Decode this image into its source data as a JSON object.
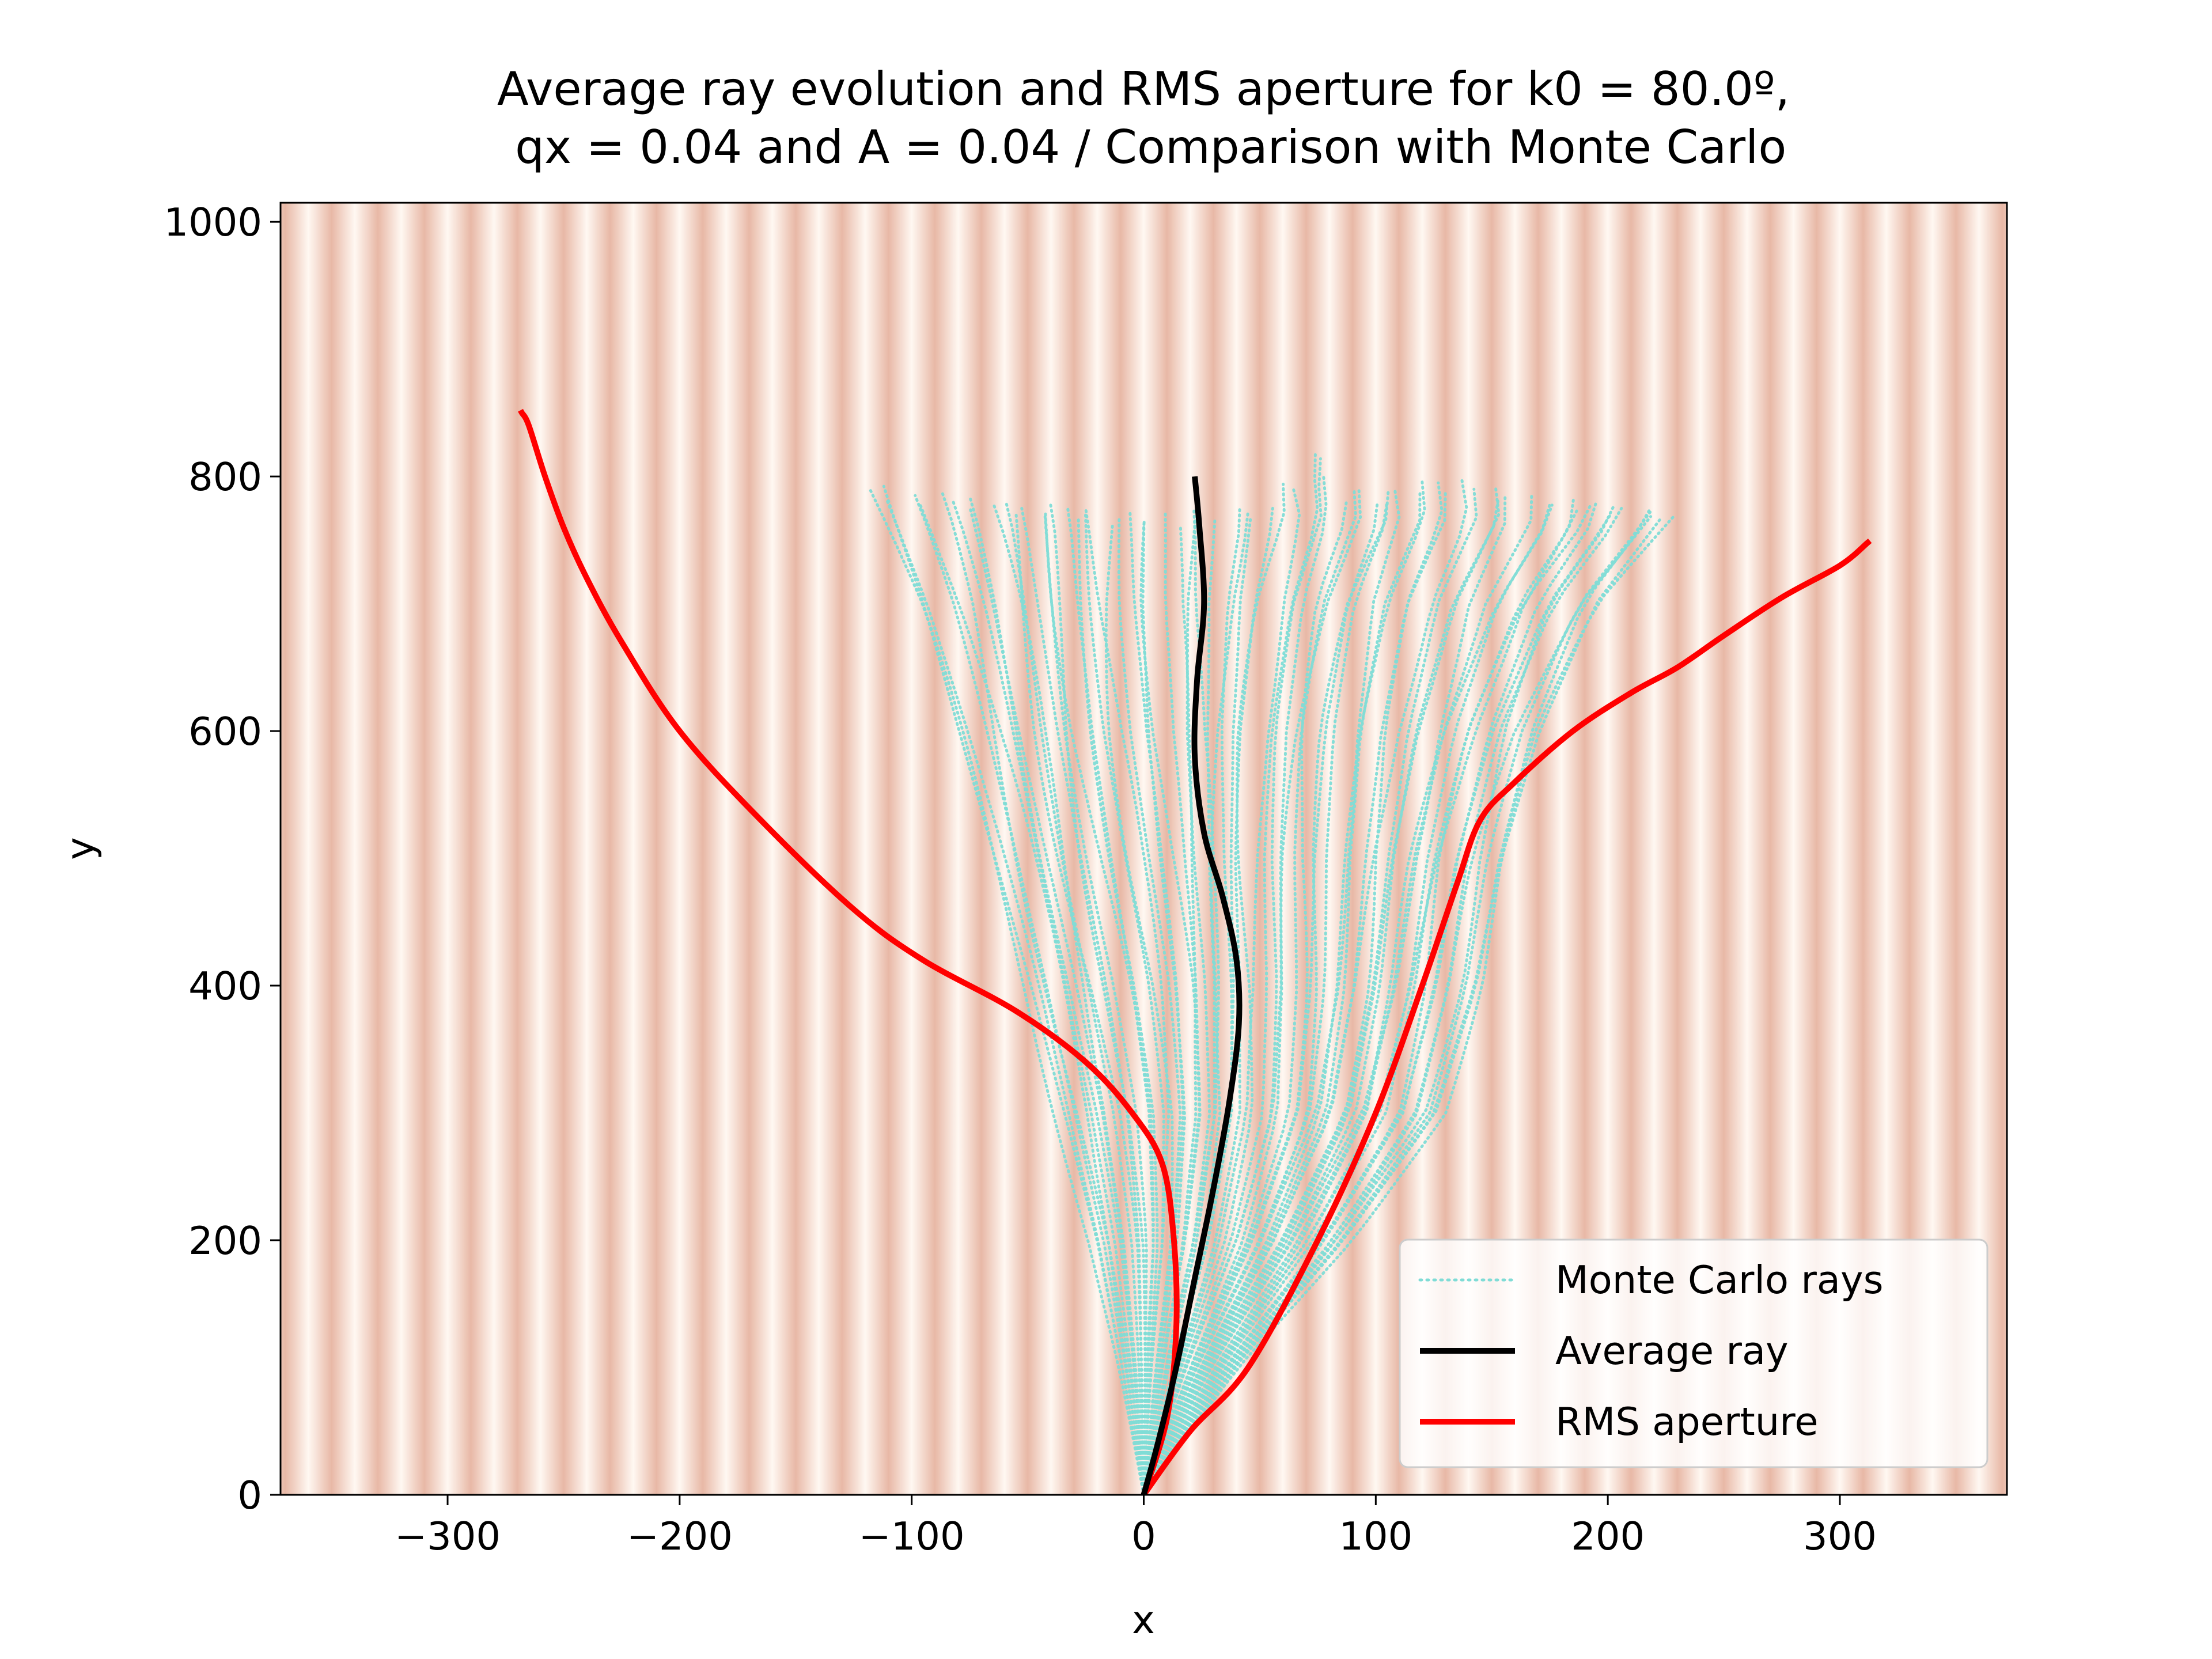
{
  "chart_data": {
    "type": "line",
    "title": "Average ray evolution and RMS aperture for k0 = 80.0º,\n qx = 0.04 and A = 0.04 / Comparison with Monte Carlo",
    "title_lines": [
      "Average ray evolution and RMS aperture for k0 = 80.0º,",
      " qx = 0.04 and A = 0.04 / Comparison with Monte Carlo"
    ],
    "xlabel": "x",
    "ylabel": "y",
    "xlim": [
      -372,
      372
    ],
    "ylim": [
      0,
      1015
    ],
    "xticks": [
      -300,
      -200,
      -100,
      0,
      100,
      200,
      300
    ],
    "yticks": [
      0,
      200,
      400,
      600,
      800,
      1000
    ],
    "xtick_labels": [
      "−300",
      "−200",
      "−100",
      "0",
      "100",
      "200",
      "300"
    ],
    "ytick_labels": [
      "0",
      "200",
      "400",
      "600",
      "800",
      "1000"
    ],
    "grid": false,
    "legend_position": "lower-right",
    "background": {
      "type": "vertical-stripes",
      "period_x": 20,
      "light_color": "#fff8f2",
      "dark_color": "#e8b8a6"
    },
    "series": [
      {
        "name": "Monte Carlo rays",
        "style": "dotted",
        "color": "#7fdcd6",
        "envelope_left": [
          [
            0,
            0
          ],
          [
            -10,
            100
          ],
          [
            -22,
            200
          ],
          [
            -37,
            300
          ],
          [
            -52,
            400
          ],
          [
            -68,
            500
          ],
          [
            -84,
            600
          ],
          [
            -100,
            700
          ],
          [
            -118,
            790
          ]
        ],
        "envelope_right": [
          [
            0,
            0
          ],
          [
            40,
            100
          ],
          [
            88,
            200
          ],
          [
            128,
            300
          ],
          [
            146,
            400
          ],
          [
            158,
            500
          ],
          [
            175,
            600
          ],
          [
            200,
            700
          ],
          [
            230,
            770
          ]
        ],
        "top_edge": [
          [
            -118,
            790
          ],
          [
            -60,
            775
          ],
          [
            0,
            765
          ],
          [
            60,
            770
          ],
          [
            130,
            775
          ],
          [
            230,
            770
          ]
        ],
        "sample_ray_endpoints": [
          [
            -118,
            790
          ],
          [
            -100,
            785
          ],
          [
            -85,
            780
          ],
          [
            -70,
            778
          ],
          [
            -55,
            775
          ],
          [
            -40,
            772
          ],
          [
            -25,
            770
          ],
          [
            -10,
            768
          ],
          [
            5,
            767
          ],
          [
            20,
            768
          ],
          [
            35,
            772
          ],
          [
            50,
            775
          ],
          [
            70,
            820
          ],
          [
            85,
            790
          ],
          [
            100,
            780
          ],
          [
            115,
            790
          ],
          [
            130,
            795
          ],
          [
            145,
            790
          ],
          [
            160,
            785
          ],
          [
            175,
            780
          ],
          [
            190,
            778
          ],
          [
            205,
            775
          ],
          [
            218,
            772
          ],
          [
            230,
            770
          ]
        ]
      },
      {
        "name": "Average ray",
        "style": "solid",
        "color": "#000000",
        "x": [
          0,
          6,
          14,
          22,
          30,
          37,
          41,
          40,
          34,
          26,
          22,
          23,
          26,
          24,
          22
        ],
        "y": [
          0,
          40,
          100,
          170,
          240,
          310,
          370,
          420,
          470,
          520,
          580,
          640,
          700,
          760,
          800
        ]
      },
      {
        "name": "RMS aperture",
        "style": "solid",
        "color": "#ff0000",
        "branches": [
          {
            "x": [
              0,
              10,
              14,
              13,
              8,
              -5,
              -25,
              -55,
              -95,
              -125,
              -165,
              -200,
              -225,
              -240,
              -250,
              -258,
              -265,
              -268
            ],
            "y": [
              0,
              60,
              130,
              200,
              260,
              300,
              340,
              380,
              420,
              460,
              530,
              600,
              670,
              720,
              760,
              800,
              840,
              850
            ]
          },
          {
            "x": [
              0,
              20,
              45,
              75,
              100,
              120,
              135,
              145,
              160,
              185,
              210,
              230,
              250,
              275,
              300,
              312
            ],
            "y": [
              0,
              50,
              100,
              200,
              300,
              400,
              480,
              530,
              560,
              600,
              630,
              650,
              675,
              705,
              730,
              748
            ]
          }
        ]
      }
    ]
  }
}
